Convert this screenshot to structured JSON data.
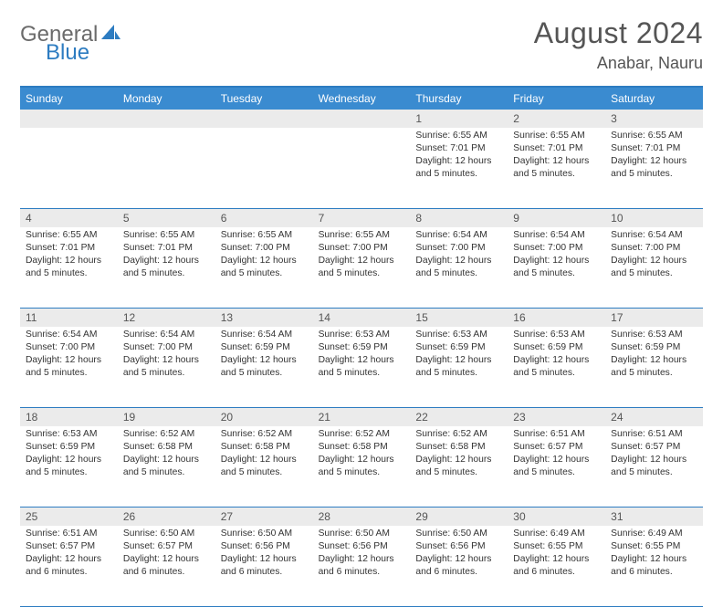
{
  "brand": {
    "text_a": "General",
    "text_b": "Blue"
  },
  "title": "August 2024",
  "location": "Anabar, Nauru",
  "weekdays": [
    "Sunday",
    "Monday",
    "Tuesday",
    "Wednesday",
    "Thursday",
    "Friday",
    "Saturday"
  ],
  "colors": {
    "header_bar": "#3a8bd0",
    "accent_line": "#2d7cc1",
    "strip_bg": "#ebebeb",
    "text_muted": "#555555",
    "text_body": "#333333",
    "logo_gray": "#6b6b6b",
    "logo_blue": "#2d7cc1",
    "bg": "#ffffff"
  },
  "typography": {
    "title_fontsize": 32,
    "location_fontsize": 18,
    "weekday_fontsize": 12,
    "daynum_fontsize": 12,
    "info_fontsize": 10.3,
    "font_family": "Arial"
  },
  "layout": {
    "cols": 7,
    "rows": 5,
    "cell_min_height": 88
  },
  "weeks": [
    [
      {
        "n": "",
        "sunrise": "",
        "sunset": "",
        "daylight": ""
      },
      {
        "n": "",
        "sunrise": "",
        "sunset": "",
        "daylight": ""
      },
      {
        "n": "",
        "sunrise": "",
        "sunset": "",
        "daylight": ""
      },
      {
        "n": "",
        "sunrise": "",
        "sunset": "",
        "daylight": ""
      },
      {
        "n": "1",
        "sunrise": "6:55 AM",
        "sunset": "7:01 PM",
        "daylight": "12 hours and 5 minutes."
      },
      {
        "n": "2",
        "sunrise": "6:55 AM",
        "sunset": "7:01 PM",
        "daylight": "12 hours and 5 minutes."
      },
      {
        "n": "3",
        "sunrise": "6:55 AM",
        "sunset": "7:01 PM",
        "daylight": "12 hours and 5 minutes."
      }
    ],
    [
      {
        "n": "4",
        "sunrise": "6:55 AM",
        "sunset": "7:01 PM",
        "daylight": "12 hours and 5 minutes."
      },
      {
        "n": "5",
        "sunrise": "6:55 AM",
        "sunset": "7:01 PM",
        "daylight": "12 hours and 5 minutes."
      },
      {
        "n": "6",
        "sunrise": "6:55 AM",
        "sunset": "7:00 PM",
        "daylight": "12 hours and 5 minutes."
      },
      {
        "n": "7",
        "sunrise": "6:55 AM",
        "sunset": "7:00 PM",
        "daylight": "12 hours and 5 minutes."
      },
      {
        "n": "8",
        "sunrise": "6:54 AM",
        "sunset": "7:00 PM",
        "daylight": "12 hours and 5 minutes."
      },
      {
        "n": "9",
        "sunrise": "6:54 AM",
        "sunset": "7:00 PM",
        "daylight": "12 hours and 5 minutes."
      },
      {
        "n": "10",
        "sunrise": "6:54 AM",
        "sunset": "7:00 PM",
        "daylight": "12 hours and 5 minutes."
      }
    ],
    [
      {
        "n": "11",
        "sunrise": "6:54 AM",
        "sunset": "7:00 PM",
        "daylight": "12 hours and 5 minutes."
      },
      {
        "n": "12",
        "sunrise": "6:54 AM",
        "sunset": "7:00 PM",
        "daylight": "12 hours and 5 minutes."
      },
      {
        "n": "13",
        "sunrise": "6:54 AM",
        "sunset": "6:59 PM",
        "daylight": "12 hours and 5 minutes."
      },
      {
        "n": "14",
        "sunrise": "6:53 AM",
        "sunset": "6:59 PM",
        "daylight": "12 hours and 5 minutes."
      },
      {
        "n": "15",
        "sunrise": "6:53 AM",
        "sunset": "6:59 PM",
        "daylight": "12 hours and 5 minutes."
      },
      {
        "n": "16",
        "sunrise": "6:53 AM",
        "sunset": "6:59 PM",
        "daylight": "12 hours and 5 minutes."
      },
      {
        "n": "17",
        "sunrise": "6:53 AM",
        "sunset": "6:59 PM",
        "daylight": "12 hours and 5 minutes."
      }
    ],
    [
      {
        "n": "18",
        "sunrise": "6:53 AM",
        "sunset": "6:59 PM",
        "daylight": "12 hours and 5 minutes."
      },
      {
        "n": "19",
        "sunrise": "6:52 AM",
        "sunset": "6:58 PM",
        "daylight": "12 hours and 5 minutes."
      },
      {
        "n": "20",
        "sunrise": "6:52 AM",
        "sunset": "6:58 PM",
        "daylight": "12 hours and 5 minutes."
      },
      {
        "n": "21",
        "sunrise": "6:52 AM",
        "sunset": "6:58 PM",
        "daylight": "12 hours and 5 minutes."
      },
      {
        "n": "22",
        "sunrise": "6:52 AM",
        "sunset": "6:58 PM",
        "daylight": "12 hours and 5 minutes."
      },
      {
        "n": "23",
        "sunrise": "6:51 AM",
        "sunset": "6:57 PM",
        "daylight": "12 hours and 5 minutes."
      },
      {
        "n": "24",
        "sunrise": "6:51 AM",
        "sunset": "6:57 PM",
        "daylight": "12 hours and 5 minutes."
      }
    ],
    [
      {
        "n": "25",
        "sunrise": "6:51 AM",
        "sunset": "6:57 PM",
        "daylight": "12 hours and 6 minutes."
      },
      {
        "n": "26",
        "sunrise": "6:50 AM",
        "sunset": "6:57 PM",
        "daylight": "12 hours and 6 minutes."
      },
      {
        "n": "27",
        "sunrise": "6:50 AM",
        "sunset": "6:56 PM",
        "daylight": "12 hours and 6 minutes."
      },
      {
        "n": "28",
        "sunrise": "6:50 AM",
        "sunset": "6:56 PM",
        "daylight": "12 hours and 6 minutes."
      },
      {
        "n": "29",
        "sunrise": "6:50 AM",
        "sunset": "6:56 PM",
        "daylight": "12 hours and 6 minutes."
      },
      {
        "n": "30",
        "sunrise": "6:49 AM",
        "sunset": "6:55 PM",
        "daylight": "12 hours and 6 minutes."
      },
      {
        "n": "31",
        "sunrise": "6:49 AM",
        "sunset": "6:55 PM",
        "daylight": "12 hours and 6 minutes."
      }
    ]
  ],
  "labels": {
    "sunrise": "Sunrise:",
    "sunset": "Sunset:",
    "daylight": "Daylight:"
  }
}
